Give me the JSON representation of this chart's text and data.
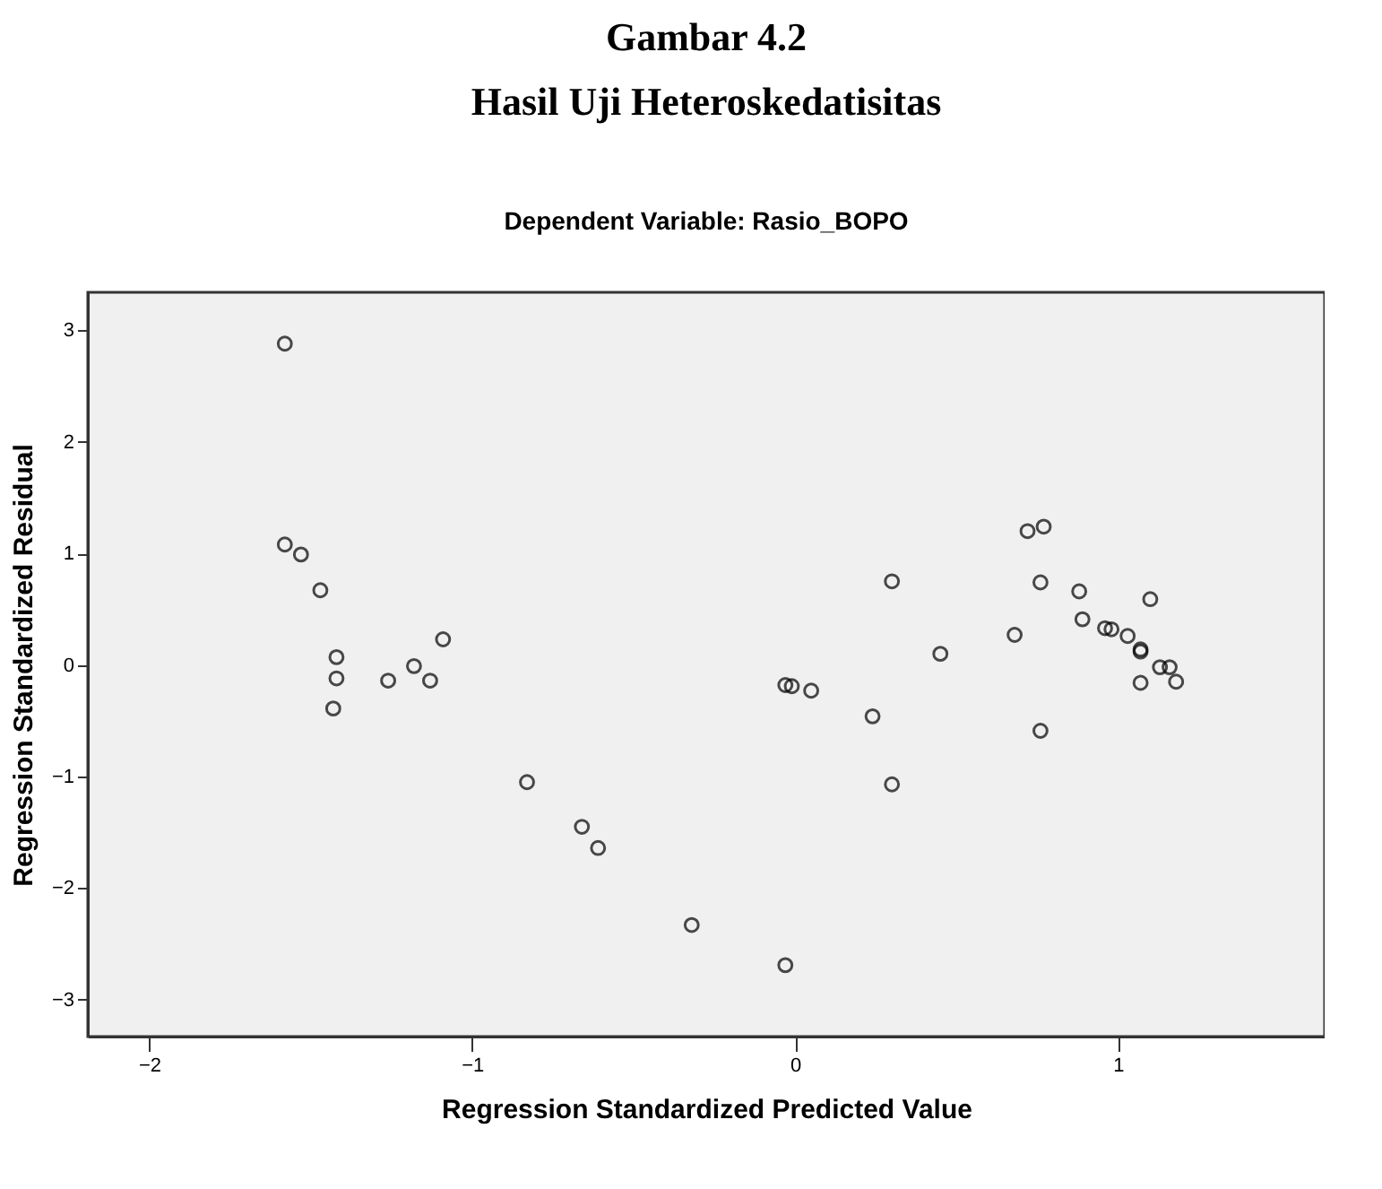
{
  "chart_data": {
    "type": "scatter",
    "title": "Gambar 4.2",
    "subtitle": "Hasil Uji Heteroskedatisitas",
    "annotations": [
      "Dependent Variable: Rasio_BOPO"
    ],
    "xlabel": "Regression Standardized Predicted Value",
    "ylabel": "Regression Standardized Residual",
    "xlim": [
      -2.19,
      1.64
    ],
    "ylim": [
      -3.33,
      3.34
    ],
    "xticks": [
      -2,
      -1,
      0,
      1
    ],
    "yticks": [
      -3,
      -2,
      -1,
      0,
      1,
      2,
      3
    ],
    "grid": false,
    "legend": false,
    "marker": "circle",
    "series": [
      {
        "color": "#000000",
        "x": [
          -1.58,
          -1.58,
          -1.53,
          -1.47,
          -1.42,
          -1.42,
          -1.43,
          -1.26,
          -1.18,
          -1.13,
          -1.09,
          -0.83,
          -0.66,
          -0.61,
          -0.32,
          -0.03,
          -0.03,
          -0.01,
          0.05,
          0.24,
          0.3,
          0.3,
          0.45,
          0.68,
          0.72,
          0.77,
          0.76,
          0.76,
          0.88,
          0.89,
          0.96,
          0.98,
          1.03,
          1.07,
          1.07,
          1.1,
          1.13,
          1.16,
          1.07,
          1.18
        ],
        "values": [
          2.88,
          1.08,
          0.99,
          0.67,
          0.07,
          -0.12,
          -0.39,
          -0.14,
          -0.01,
          -0.14,
          0.23,
          -1.05,
          -1.45,
          -1.64,
          -2.33,
          -2.69,
          -0.18,
          -0.19,
          -0.23,
          -0.46,
          0.75,
          -1.07,
          0.1,
          0.27,
          1.2,
          1.24,
          0.74,
          -0.59,
          0.66,
          0.41,
          0.33,
          0.32,
          0.26,
          0.12,
          0.14,
          0.59,
          -0.02,
          -0.02,
          -0.16,
          -0.15
        ]
      }
    ]
  }
}
